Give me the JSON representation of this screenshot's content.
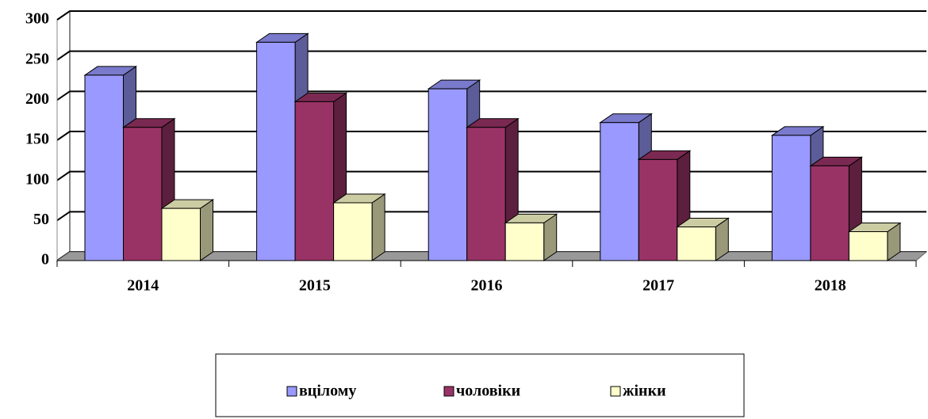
{
  "chart_data": {
    "type": "bar3d",
    "categories": [
      "2014",
      "2015",
      "2016",
      "2017",
      "2018"
    ],
    "series": [
      {
        "name": "вцілому",
        "color": "#9999ff",
        "values": [
          231,
          272,
          214,
          172,
          156
        ]
      },
      {
        "name": "чоловіки",
        "color": "#993366",
        "values": [
          166,
          198,
          166,
          126,
          118
        ]
      },
      {
        "name": "жінки",
        "color": "#ffffcc",
        "values": [
          65,
          72,
          47,
          42,
          36
        ]
      }
    ],
    "ylim": [
      0,
      300
    ],
    "yticks": [
      0,
      50,
      100,
      150,
      200,
      250,
      300
    ],
    "grid": true,
    "legend": "bottom"
  }
}
